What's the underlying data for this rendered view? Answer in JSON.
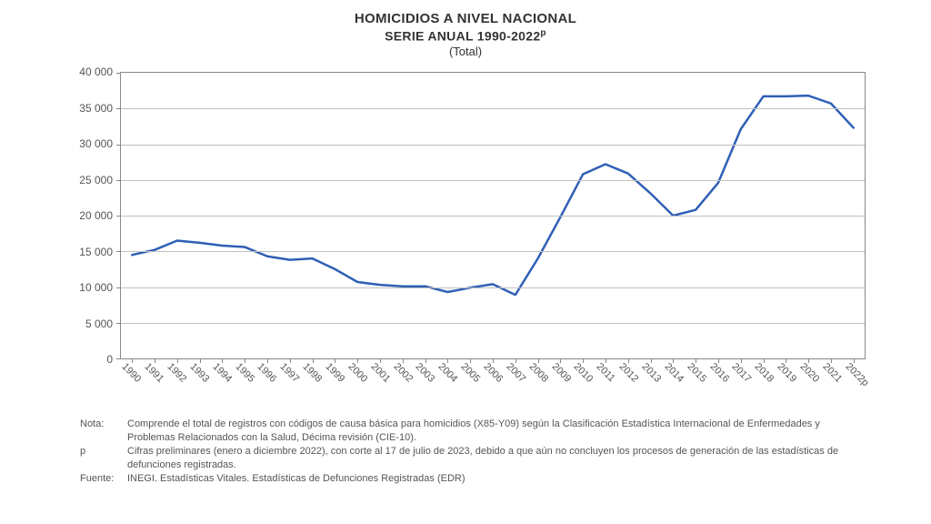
{
  "chart": {
    "type": "line",
    "title_main": "HOMICIDIOS A NIVEL NACIONAL",
    "title_sub_prefix": "SERIE ANUAL 1990-2022",
    "title_sub_sup": "p",
    "title_measure": "(Total)",
    "title_fontsize_main": 15,
    "title_fontsize_sub": 14,
    "title_fontsize_measure": 13,
    "background_color": "#ffffff",
    "border_color": "#888888",
    "grid_color": "#bfbfbf",
    "text_color": "#555555",
    "line_color": "#2f5fb5",
    "line_width": 2.5,
    "ylim": [
      0,
      40000
    ],
    "ytick_step": 5000,
    "ytick_labels": [
      "0",
      "5 000",
      "10 000",
      "15 000",
      "20 000",
      "25 000",
      "30 000",
      "35 000",
      "40 000"
    ],
    "axis_label_fontsize": 12,
    "xtick_label_fontsize": 11,
    "xtick_rotation_deg": 45,
    "categories": [
      "1990",
      "1991",
      "1992",
      "1993",
      "1994",
      "1995",
      "1996",
      "1997",
      "1998",
      "1999",
      "2000",
      "2001",
      "2002",
      "2003",
      "2004",
      "2005",
      "2006",
      "2007",
      "2008",
      "2009",
      "2010",
      "2011",
      "2012",
      "2013",
      "2014",
      "2015",
      "2016",
      "2017",
      "2018",
      "2019",
      "2020",
      "2021",
      "2022p"
    ],
    "values": [
      14500,
      15200,
      16500,
      16200,
      15800,
      15600,
      14300,
      13800,
      14000,
      12500,
      10700,
      10300,
      10100,
      10100,
      9300,
      9900,
      10400,
      8900,
      14000,
      19800,
      25800,
      27200,
      25900,
      23100,
      20000,
      20800,
      24600,
      32100,
      36700,
      36700,
      36800,
      35700,
      32300
    ]
  },
  "notes": {
    "nota_label": "Nota:",
    "nota_text": "Comprende el total de registros con códigos de causa básica para homicidios (X85-Y09) según la Clasificación Estadística Internacional de Enfermedades y Problemas Relacionados con la Salud, Décima revisión (CIE-10).",
    "p_label": "p",
    "p_text": "Cifras preliminares (enero a diciembre 2022), con corte al 17 de julio de 2023, debido a que aún no concluyen los procesos de generación de las estadísticas de defunciones registradas.",
    "fuente_label": "Fuente:",
    "fuente_text": "INEGI. Estadísticas Vitales. Estadísticas de Defunciones Registradas (EDR)",
    "fontsize": 11,
    "text_color": "#555555"
  }
}
